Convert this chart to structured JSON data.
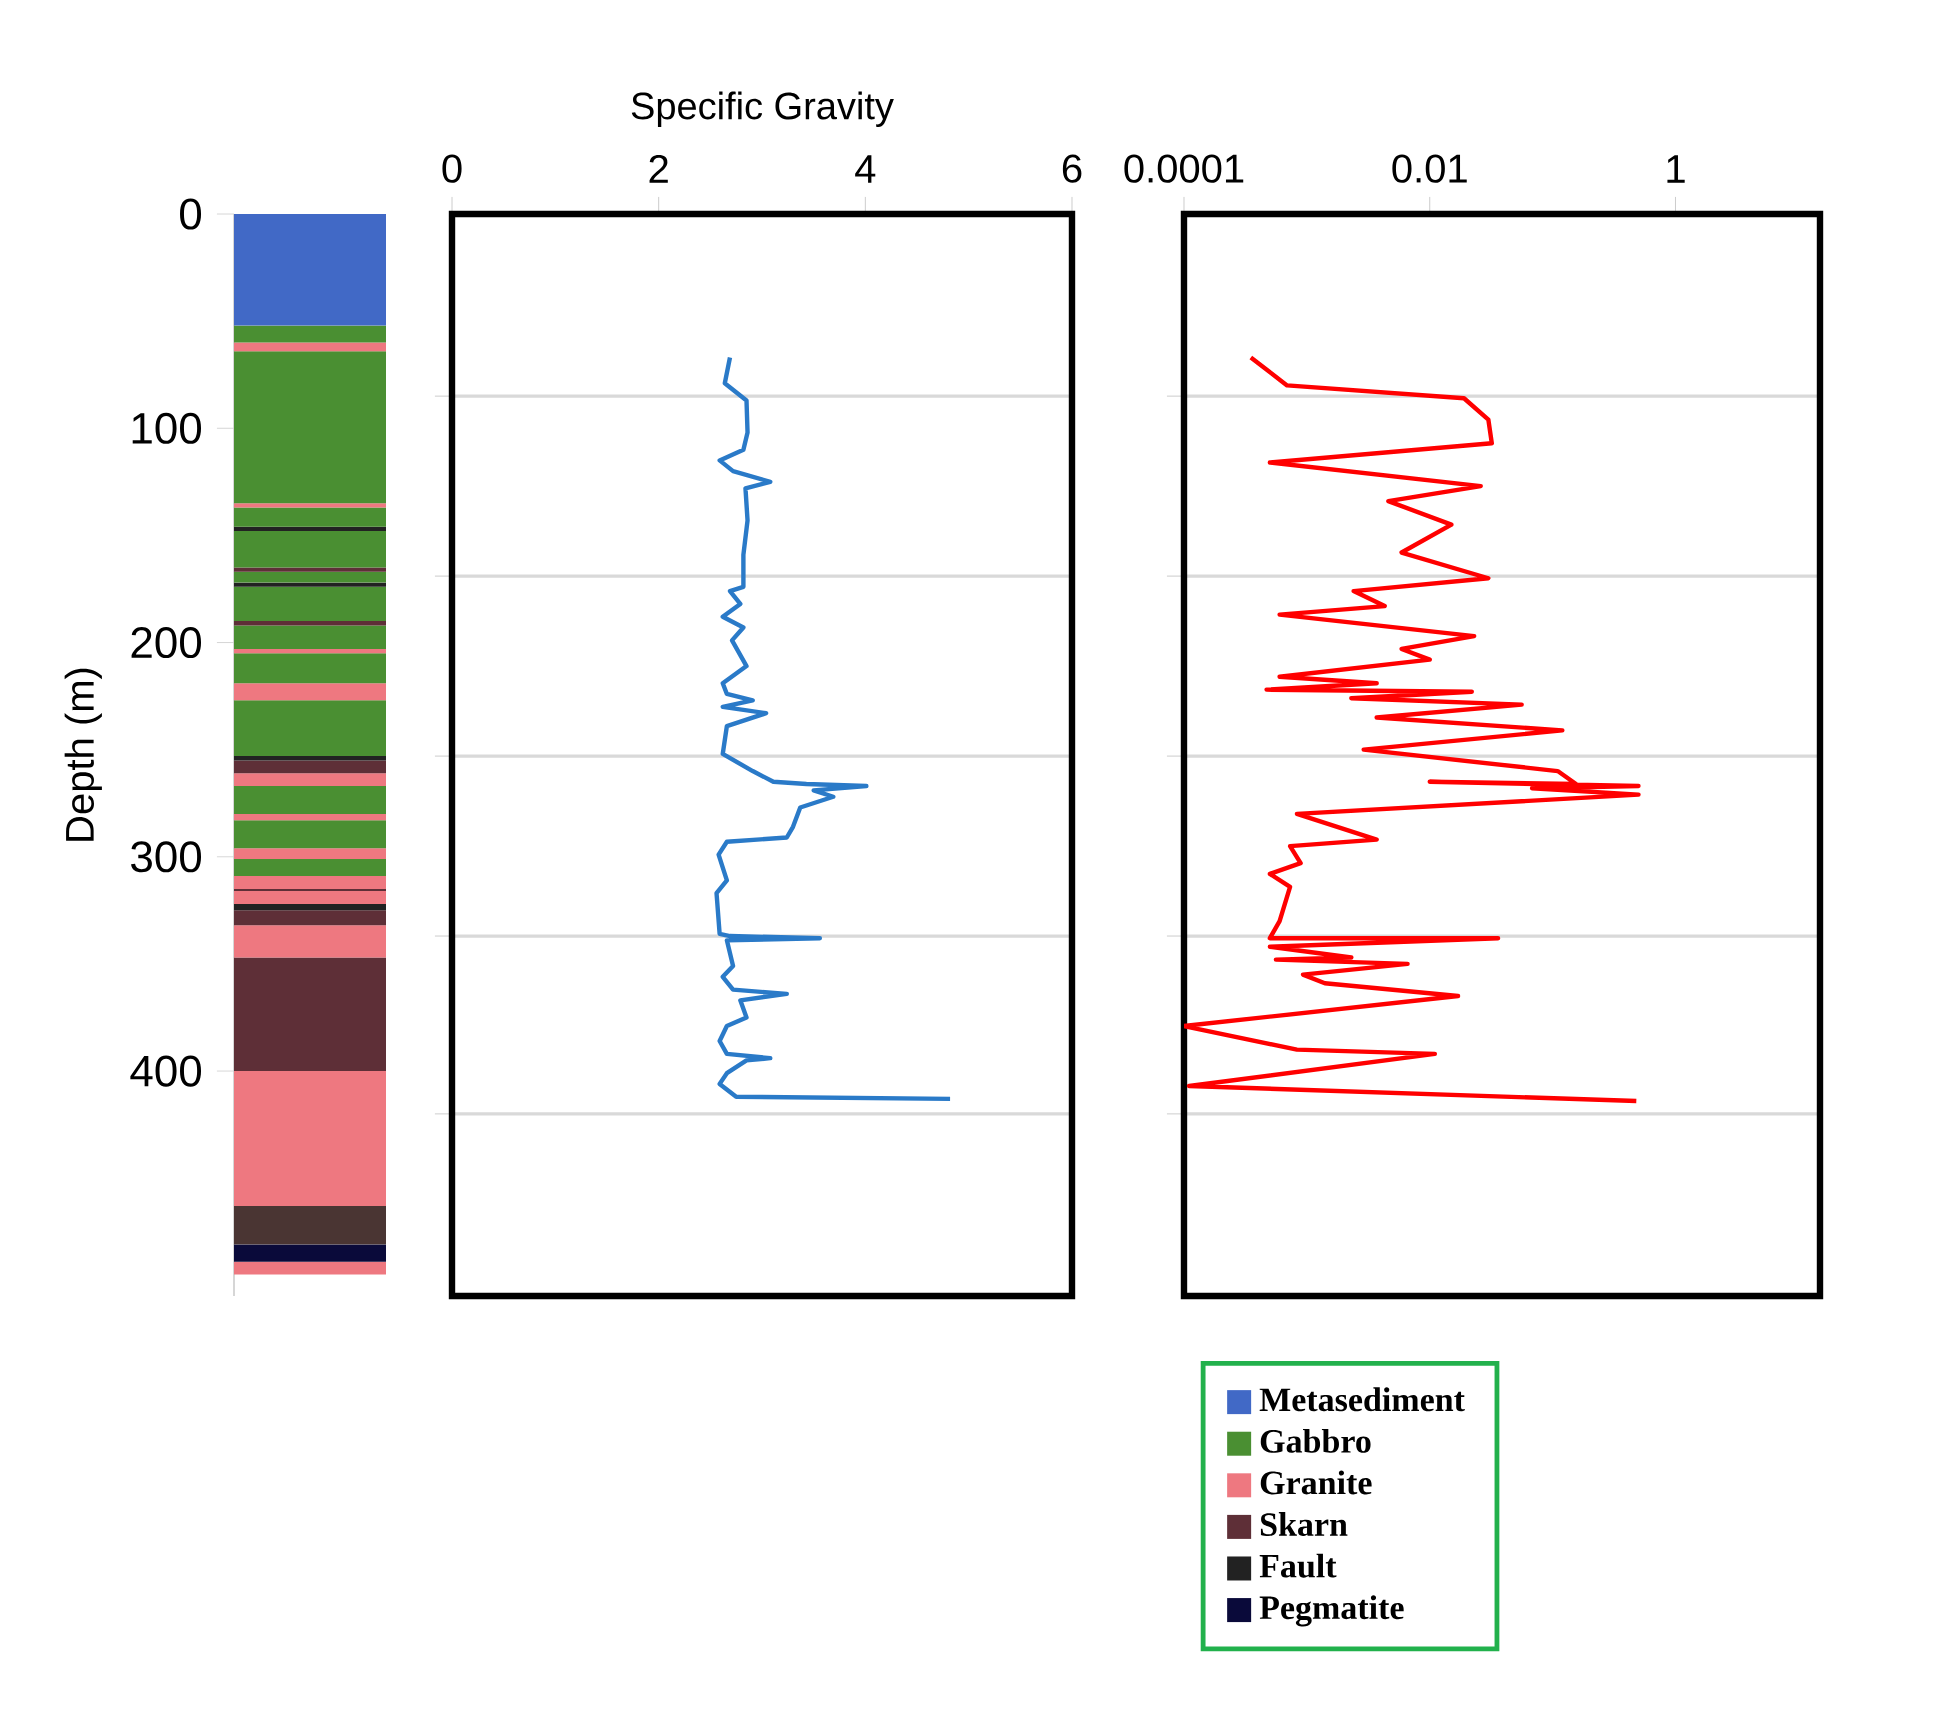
{
  "chart_data": [
    {
      "type": "bar",
      "stacked": true,
      "ylabel": "Depth (m)",
      "categories": [
        null
      ],
      "ylim": [
        505,
        0
      ],
      "yticks": [
        0,
        100,
        200,
        300,
        400
      ],
      "legend": "bottom right",
      "series": [
        {
          "name": "Metasediment",
          "color": "#4169c6",
          "values": [
            52
          ]
        },
        {
          "name": "Gabbro",
          "color": "#4a8f32",
          "values": [
            8
          ]
        },
        {
          "name": "Granite",
          "color": "#ee7880",
          "values": [
            4
          ]
        },
        {
          "color": "#4a8f32",
          "values": [
            71
          ]
        },
        {
          "color": "#ee7880",
          "values": [
            2
          ]
        },
        {
          "color": "#4a8f32",
          "values": [
            9
          ]
        },
        {
          "color": "#222222",
          "values": [
            2
          ]
        },
        {
          "color": "#4a8f32",
          "values": [
            17
          ]
        },
        {
          "name": "Skarn",
          "color": "#5e2f37",
          "values": [
            2
          ]
        },
        {
          "color": "#4a8f32",
          "values": [
            5
          ]
        },
        {
          "color": "#222222",
          "values": [
            2
          ]
        },
        {
          "color": "#4a8f32",
          "values": [
            16
          ]
        },
        {
          "color": "#5e2f37",
          "values": [
            2
          ]
        },
        {
          "color": "#4a8f32",
          "values": [
            11
          ]
        },
        {
          "color": "#ee7880",
          "values": [
            2
          ]
        },
        {
          "color": "#4a8f32",
          "values": [
            14
          ]
        },
        {
          "color": "#ee7880",
          "values": [
            8
          ]
        },
        {
          "color": "#4a8f32",
          "values": [
            26
          ]
        },
        {
          "color": "#222222",
          "values": [
            2
          ]
        },
        {
          "color": "#5e2f37",
          "values": [
            6
          ]
        },
        {
          "color": "#ee7880",
          "values": [
            6
          ]
        },
        {
          "color": "#4a8f32",
          "values": [
            13
          ]
        },
        {
          "color": "#ee7880",
          "values": [
            3
          ]
        },
        {
          "color": "#4a8f32",
          "values": [
            13
          ]
        },
        {
          "color": "#ee7880",
          "values": [
            5
          ]
        },
        {
          "color": "#4a8f32",
          "values": [
            8
          ]
        },
        {
          "color": "#ee7880",
          "values": [
            6
          ]
        },
        {
          "color": "#5e2f37",
          "values": [
            1
          ]
        },
        {
          "color": "#ee7880",
          "values": [
            6
          ]
        },
        {
          "name": "Fault",
          "color": "#222222",
          "values": [
            3
          ]
        },
        {
          "color": "#5e2f37",
          "values": [
            7
          ]
        },
        {
          "color": "#ee7880",
          "values": [
            15
          ]
        },
        {
          "color": "#5e2f37",
          "values": [
            53
          ]
        },
        {
          "color": "#ee7880",
          "values": [
            63
          ]
        },
        {
          "color": "#4a3533",
          "values": [
            18
          ]
        },
        {
          "name": "Pegmatite",
          "color": "#0a0a3a",
          "values": [
            8
          ]
        },
        {
          "color": "#ee7880",
          "values": [
            6
          ]
        }
      ]
    },
    {
      "type": "line",
      "xlabel": "Specific Gravity",
      "xlim": [
        0,
        6
      ],
      "xticks": [
        0,
        2,
        4,
        6
      ],
      "ylim": [
        505,
        0
      ],
      "yticks": [
        {
          "value": 85,
          "label": null
        },
        {
          "value": 169,
          "label": null
        },
        {
          "value": 253,
          "label": null
        },
        {
          "value": 337,
          "label": null
        },
        {
          "value": 420,
          "label": null
        }
      ],
      "grid": "y",
      "tick_labels": "x",
      "series": [
        {
          "color": "#2a7ac8",
          "x": [
            2.69,
            2.64,
            2.85,
            2.86,
            2.82,
            2.59,
            2.72,
            3.08,
            2.84,
            2.86,
            2.82,
            2.82,
            2.69,
            2.79,
            2.62,
            2.82,
            2.71,
            2.85,
            2.62,
            2.66,
            2.91,
            2.62,
            3.04,
            2.66,
            2.62,
            2.91,
            3.11,
            3.43,
            4.01,
            3.5,
            3.69,
            3.37,
            3.3,
            3.24,
            2.66,
            2.58,
            2.66,
            2.56,
            2.59,
            2.69,
            3.56,
            2.66,
            2.72,
            2.62,
            2.72,
            3.24,
            2.79,
            2.85,
            2.66,
            2.59,
            2.66,
            3.08,
            2.85,
            2.66,
            2.59,
            2.75,
            4.82
          ],
          "values": [
            67,
            79,
            87,
            102,
            110,
            115,
            120,
            125,
            128,
            143,
            159,
            174,
            176,
            182,
            188,
            193,
            199,
            211,
            219,
            224,
            227,
            230,
            233,
            239,
            252,
            260,
            265,
            266,
            267,
            269,
            272,
            277,
            286,
            291,
            293,
            299,
            311,
            317,
            336,
            337,
            338,
            339,
            351,
            356,
            362,
            364,
            367,
            375,
            379,
            386,
            392,
            394,
            395,
            401,
            406,
            412,
            413
          ]
        }
      ]
    },
    {
      "type": "line",
      "log": "x",
      "xlim": [
        0.0001,
        15
      ],
      "xticks": [
        0.0001,
        0.01,
        1
      ],
      "ylim": [
        505,
        0
      ],
      "yticks": [
        {
          "value": 85,
          "label": null
        },
        {
          "value": 169,
          "label": null
        },
        {
          "value": 253,
          "label": null
        },
        {
          "value": 337,
          "label": null
        },
        {
          "value": 420,
          "label": null
        }
      ],
      "grid": "y",
      "tick_labels": "x",
      "series": [
        {
          "color": "#ff0000",
          "x": [
            0.00035,
            0.00069,
            0.019,
            0.03,
            0.032,
            0.0005,
            0.026,
            0.0046,
            0.015,
            0.0059,
            0.03,
            0.0024,
            0.0043,
            0.0006,
            0.023,
            0.0059,
            0.01,
            0.0006,
            0.0037,
            0.00047,
            0.022,
            0.0023,
            0.056,
            0.0037,
            0.12,
            0.0029,
            0.11,
            0.155,
            0.01,
            0.5,
            0.068,
            0.5,
            0.00083,
            0.0037,
            0.00073,
            0.00089,
            0.0005,
            0.00073,
            0.0006,
            0.0005,
            0.036,
            0.0005,
            0.0023,
            0.00056,
            0.0066,
            0.00093,
            0.0014,
            0.017,
            0.0001,
            0.00083,
            0.011,
            0.00011,
            0.48
          ],
          "values": [
            67,
            80,
            86,
            96,
            107,
            116,
            127,
            134,
            145,
            158,
            170,
            176,
            183,
            187,
            197,
            203,
            208,
            216,
            219,
            222,
            223,
            226,
            229,
            235,
            241,
            250,
            260,
            266,
            265,
            267,
            268,
            271,
            280,
            292,
            295,
            303,
            308,
            314,
            330,
            338,
            338,
            342,
            347,
            348,
            350,
            355,
            359,
            365,
            379,
            390,
            392,
            407,
            414
          ]
        }
      ]
    }
  ]
}
